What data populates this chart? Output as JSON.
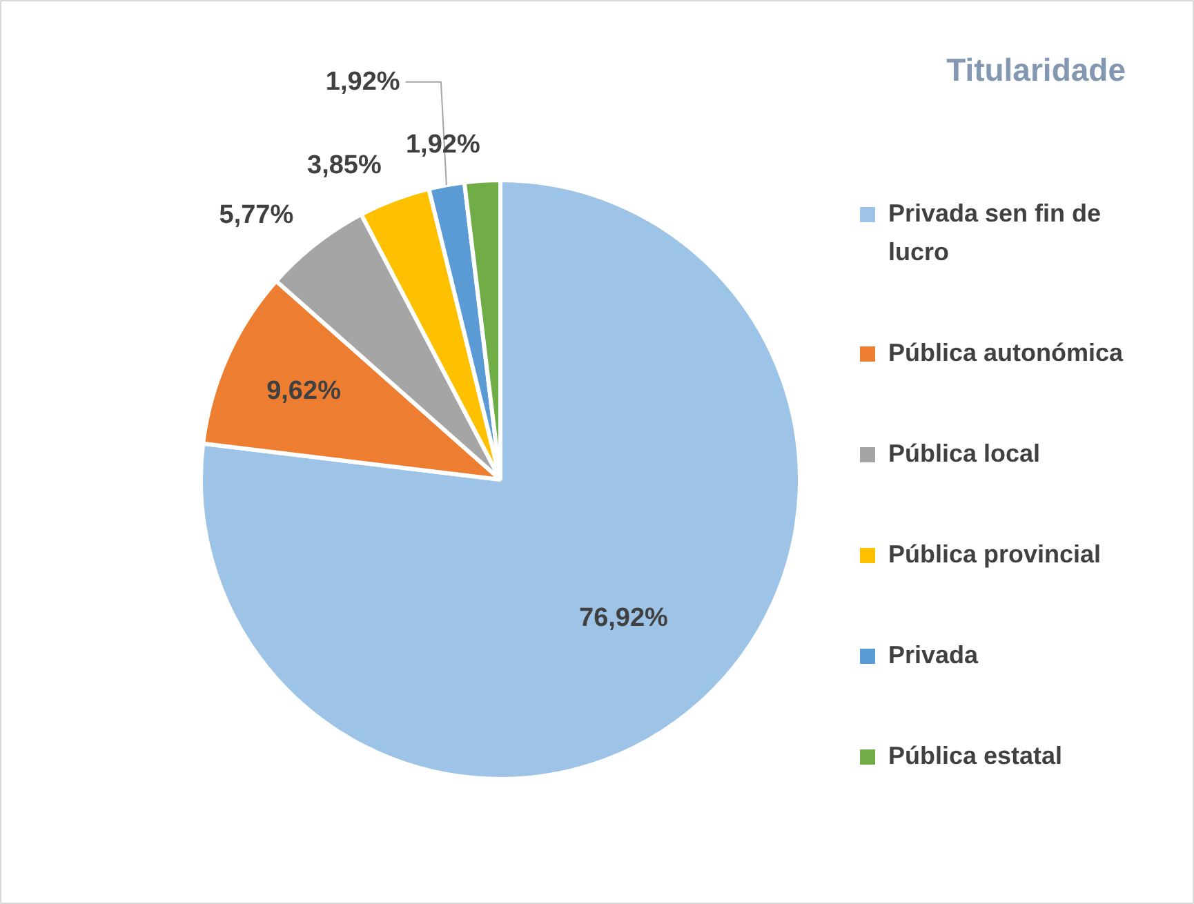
{
  "chart_data": {
    "type": "pie",
    "title": "Titularidade",
    "categories": [
      "Privada sen fin de lucro",
      "Pública autonómica",
      "Pública local",
      "Pública provincial",
      "Privada",
      "Pública estatal"
    ],
    "values": [
      76.92,
      9.62,
      5.77,
      3.85,
      1.92,
      1.92
    ],
    "value_labels": [
      "76,92%",
      "9,62%",
      "5,77%",
      "3,85%",
      "1,92%",
      "1,92%"
    ],
    "colors": [
      "#9dc3e6",
      "#ed7d31",
      "#a5a5a5",
      "#ffc000",
      "#5b9bd5",
      "#70ad47"
    ],
    "legend": "right"
  }
}
